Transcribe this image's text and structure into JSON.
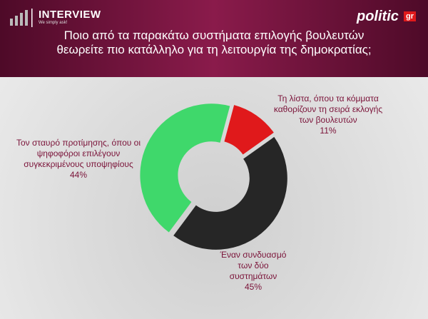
{
  "header": {
    "brand": "INTERVIEW",
    "tagline": "We simply ask!",
    "publisher": "politic",
    "publisher_suffix": "gr"
  },
  "chart_data": {
    "type": "donut",
    "title": "Ποιο από τα παρακάτω συστήματα επιλογής βουλευτών θεωρείτε πιο κατάλληλο για τη λειτουργία της δημοκρατίας;",
    "categories": [
      "Τη λίστα, όπου τα κόμματα καθορίζουν τη σειρά εκλογής των βουλευτών",
      "Έναν συνδυασμό των δύο συστημάτων",
      "Τον σταυρό προτίμησης, όπου οι ψηφοφόροι επιλέγουν συγκεκριμένους υποψηφίους"
    ],
    "values": [
      11,
      45,
      44
    ],
    "value_labels": [
      "11%",
      "45%",
      "44%"
    ],
    "colors": [
      "#e0191b",
      "#262626",
      "#3fd86b"
    ]
  }
}
